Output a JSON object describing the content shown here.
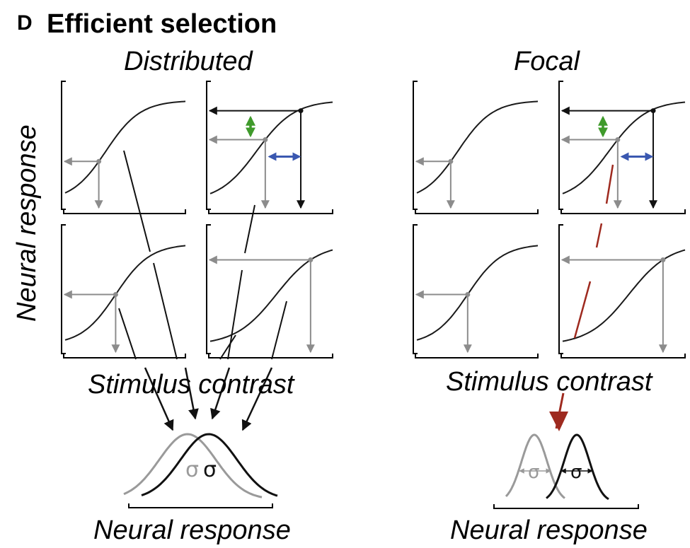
{
  "figure": {
    "panel_letter": "D",
    "title": "Efficient selection",
    "left_heading": "Distributed",
    "right_heading": "Focal",
    "ylabel": "Neural response",
    "xlabel_left": "Stimulus contrast",
    "xlabel_right": "Stimulus contrast",
    "dist_label_left": "Neural response",
    "dist_label_right": "Neural response",
    "sigma_symbol": "σ"
  },
  "colors": {
    "curve": "#1a1a1a",
    "readout_gray": "#8c8c8c",
    "gain_arrow_green": "#3f9a2b",
    "shift_arrow_blue": "#3a58b0",
    "focal_red": "#9e2a1f",
    "dist_black": "#111111",
    "dist_gray": "#9a9a9a"
  }
}
